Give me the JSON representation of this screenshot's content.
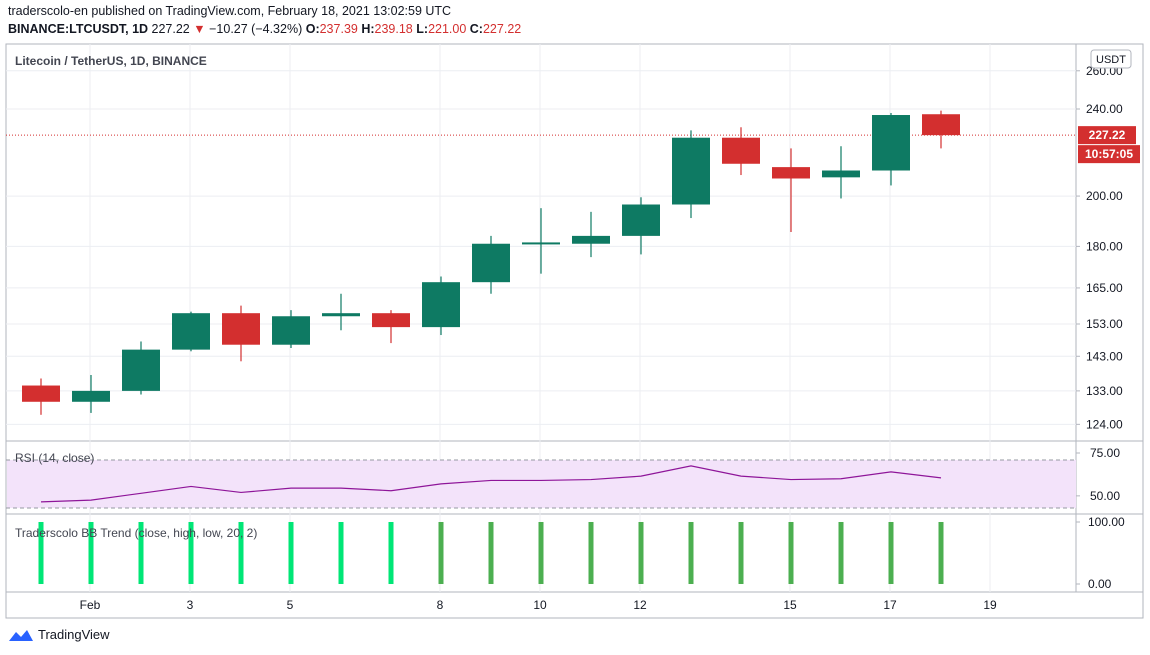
{
  "header": {
    "line1": "traderscolo-en published on TradingView.com, February 18, 2021 13:02:59 UTC",
    "symbol": "BINANCE:LTCUSDT, 1D",
    "last": "227.22",
    "change_arrow": "▼",
    "change": "−10.27 (−4.32%)",
    "o_label": "O:",
    "o_value": "237.39",
    "h_label": "H:",
    "h_value": "239.18",
    "l_label": "L:",
    "l_value": "221.00",
    "c_label": "C:",
    "c_value": "227.22"
  },
  "footer": {
    "brand": "TradingView"
  },
  "colors": {
    "bull": "#0e7a63",
    "bear": "#d32f2f",
    "grid": "#eceef2",
    "axis_text": "#131722",
    "rsi_line": "#8e1599",
    "rsi_band": "#f3e3fa",
    "bb_bright": "#00e676",
    "bb_dark": "#4caf50",
    "price_line": "#d32f2f"
  },
  "chart_data": [
    {
      "type": "candlestick",
      "title": "Litecoin / TetherUS, 1D, BINANCE",
      "currency": "USDT",
      "y_scale": "log",
      "ylim": [
        120,
        275
      ],
      "y_ticks": [
        124,
        133,
        143,
        153,
        165,
        180,
        200,
        240,
        260
      ],
      "y_tick_labels": [
        "124.00",
        "133.00",
        "143.00",
        "153.00",
        "165.00",
        "180.00",
        "200.00",
        "240.00",
        "260.00"
      ],
      "x_ticks": [
        1,
        3,
        5,
        8,
        10,
        12,
        15,
        17,
        19
      ],
      "x_tick_labels": [
        "Feb",
        "3",
        "5",
        "8",
        "10",
        "12",
        "15",
        "17",
        "19"
      ],
      "last_price_label": "227.22",
      "countdown_label": "10:57:05",
      "last_price": 227.22,
      "candles": [
        {
          "day": 0,
          "open": 134.5,
          "high": 136.5,
          "low": 126.5,
          "close": 130.0
        },
        {
          "day": 1,
          "open": 130.0,
          "high": 137.5,
          "low": 127.0,
          "close": 133.0
        },
        {
          "day": 2,
          "open": 133.0,
          "high": 147.5,
          "low": 132.0,
          "close": 145.0
        },
        {
          "day": 3,
          "open": 145.0,
          "high": 157.0,
          "low": 144.5,
          "close": 156.5
        },
        {
          "day": 4,
          "open": 156.5,
          "high": 159.0,
          "low": 141.5,
          "close": 146.5
        },
        {
          "day": 5,
          "open": 146.5,
          "high": 157.5,
          "low": 145.5,
          "close": 155.5
        },
        {
          "day": 6,
          "open": 155.5,
          "high": 163.0,
          "low": 151.0,
          "close": 156.5
        },
        {
          "day": 7,
          "open": 156.5,
          "high": 157.5,
          "low": 147.0,
          "close": 152.0
        },
        {
          "day": 8,
          "open": 152.0,
          "high": 169.0,
          "low": 149.5,
          "close": 167.0
        },
        {
          "day": 9,
          "open": 167.0,
          "high": 184.0,
          "low": 163.0,
          "close": 181.0
        },
        {
          "day": 10,
          "open": 181.0,
          "high": 195.0,
          "low": 170.0,
          "close": 181.5
        },
        {
          "day": 11,
          "open": 181.0,
          "high": 193.5,
          "low": 176.0,
          "close": 184.0
        },
        {
          "day": 12,
          "open": 184.0,
          "high": 199.5,
          "low": 177.0,
          "close": 196.5
        },
        {
          "day": 13,
          "open": 196.5,
          "high": 229.5,
          "low": 191.0,
          "close": 226.0
        },
        {
          "day": 14,
          "open": 226.0,
          "high": 231.0,
          "low": 209.0,
          "close": 214.0
        },
        {
          "day": 15,
          "open": 212.5,
          "high": 221.0,
          "low": 185.5,
          "close": 207.5
        },
        {
          "day": 16,
          "open": 208.0,
          "high": 222.0,
          "low": 199.0,
          "close": 211.0
        },
        {
          "day": 17,
          "open": 211.0,
          "high": 238.0,
          "low": 204.5,
          "close": 237.0
        },
        {
          "day": 18,
          "open": 237.39,
          "high": 239.18,
          "low": 221.0,
          "close": 227.22
        }
      ]
    },
    {
      "type": "line",
      "title": "RSI (14, close)",
      "ylim": [
        40,
        82
      ],
      "y_ticks": [
        50,
        75
      ],
      "y_tick_labels": [
        "50.00",
        "75.00"
      ],
      "band": [
        30,
        70
      ],
      "series": [
        {
          "values": [
            46.5,
            47.5,
            51.5,
            55.5,
            52.0,
            54.5,
            54.5,
            53.0,
            57.0,
            59.0,
            59.0,
            59.5,
            61.5,
            67.5,
            61.5,
            59.5,
            60.0,
            64.0,
            60.5
          ]
        }
      ]
    },
    {
      "type": "bar",
      "title": "Traderscolo BB Trend (close, high, low, 20, 2)",
      "ylim": [
        0,
        100
      ],
      "y_ticks": [
        0,
        100
      ],
      "y_tick_labels": [
        "0.00",
        "100.00"
      ],
      "values": [
        100,
        100,
        100,
        100,
        100,
        100,
        100,
        100,
        100,
        100,
        100,
        100,
        100,
        100,
        100,
        100,
        100,
        100,
        100
      ],
      "shade": [
        "bright",
        "bright",
        "bright",
        "bright",
        "bright",
        "bright",
        "bright",
        "bright",
        "dark",
        "dark",
        "dark",
        "dark",
        "dark",
        "dark",
        "dark",
        "dark",
        "dark",
        "dark",
        "dark"
      ]
    }
  ]
}
